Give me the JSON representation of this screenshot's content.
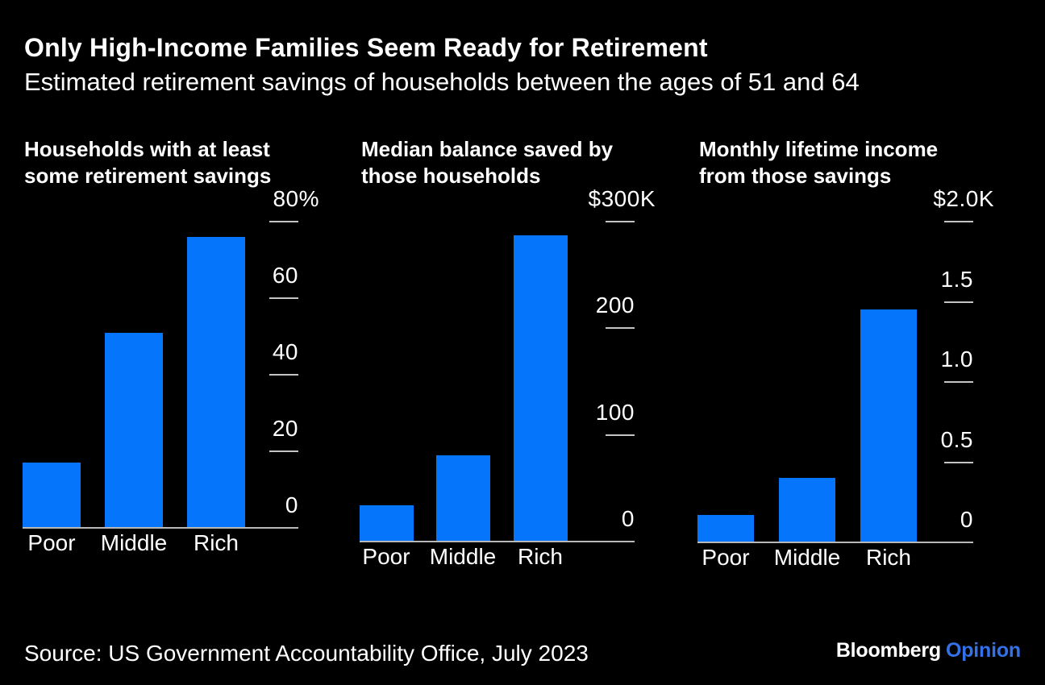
{
  "header": {
    "title": "Only High-Income Families Seem Ready for Retirement",
    "subtitle": "Estimated retirement savings of households between the ages of 51 and 64"
  },
  "chart_data": [
    {
      "type": "bar",
      "title": "Households with at least some retirement savings",
      "title_lines": [
        "Households with at least",
        "some retirement savings"
      ],
      "categories": [
        "Poor",
        "Middle",
        "Rich"
      ],
      "values": [
        17,
        51,
        76
      ],
      "unit": "%",
      "ymax": 80,
      "ylim": [
        0,
        80
      ],
      "axis_side": "right",
      "grid": false,
      "legend": "none",
      "ticks": [
        {
          "label": "80%",
          "value": 80
        },
        {
          "label": "60",
          "value": 60
        },
        {
          "label": "40",
          "value": 40
        },
        {
          "label": "20",
          "value": 20
        },
        {
          "label": "0",
          "value": 0
        }
      ]
    },
    {
      "type": "bar",
      "title": "Median balance saved by those households",
      "title_lines": [
        "Median balance saved by",
        "those households"
      ],
      "categories": [
        "Poor",
        "Middle",
        "Rich"
      ],
      "values": [
        34,
        81,
        287
      ],
      "unit": "$K",
      "ymax": 300,
      "ylim": [
        0,
        300
      ],
      "axis_side": "right",
      "grid": false,
      "legend": "none",
      "ticks": [
        {
          "label": "$300K",
          "value": 300
        },
        {
          "label": "200",
          "value": 200
        },
        {
          "label": "100",
          "value": 100
        },
        {
          "label": "0",
          "value": 0
        }
      ]
    },
    {
      "type": "bar",
      "title": "Monthly lifetime income from those savings",
      "title_lines": [
        "Monthly lifetime income",
        "from those savings"
      ],
      "categories": [
        "Poor",
        "Middle",
        "Rich"
      ],
      "values": [
        0.17,
        0.4,
        1.45
      ],
      "unit": "$K",
      "ymax": 2,
      "ylim": [
        0,
        2
      ],
      "axis_side": "right",
      "grid": false,
      "legend": "none",
      "ticks": [
        {
          "label": "$2.0K",
          "value": 2
        },
        {
          "label": "1.5",
          "value": 1.5
        },
        {
          "label": "1.0",
          "value": 1
        },
        {
          "label": "0.5",
          "value": 0.5
        },
        {
          "label": "0",
          "value": 0
        }
      ]
    }
  ],
  "footer": {
    "source": "Source: US Government Accountability Office, July 2023",
    "brand": "Bloomberg",
    "brand_suffix": "Opinion"
  },
  "colors": {
    "background": "#000000",
    "bar": "#0576fc",
    "text": "#ffffff",
    "axis_line": "#b8b8b8",
    "tick_dash": "#c4c4c4",
    "brand_blue": "#3470e8"
  }
}
